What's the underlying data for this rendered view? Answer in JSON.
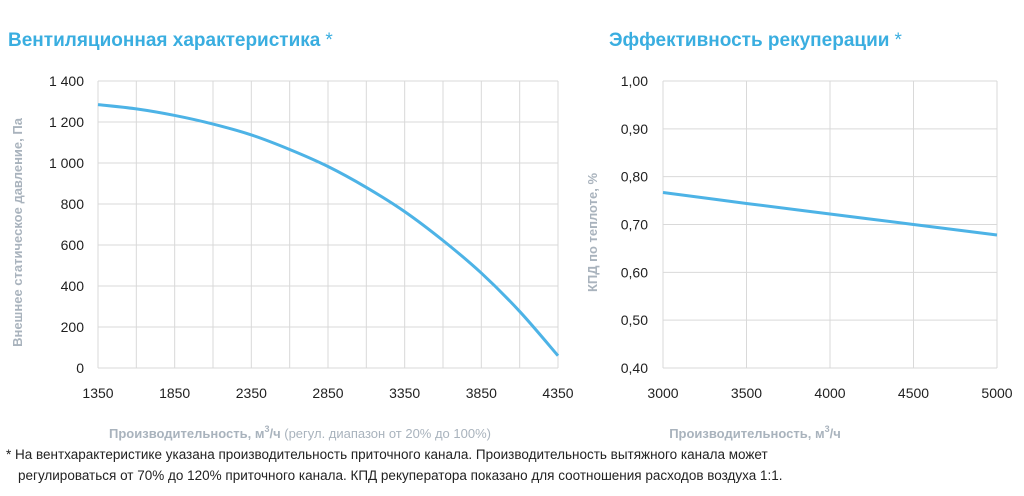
{
  "titles": {
    "left": "Вентиляционная характеристика",
    "right": "Эффективность рекуперации",
    "star": "*"
  },
  "footnote": {
    "line1": "* На вентхарактеристике указана производительность приточного канала. Производительность вытяжного канала может",
    "line2": "регулироваться от 70% до 120% приточного канала. КПД рекуператора показано для соотношения расходов воздуха 1:1."
  },
  "colors": {
    "accent": "#3aaee0",
    "curve": "#4db3e6",
    "grid": "#d9d9d9"
  },
  "chart_data": [
    {
      "type": "line",
      "title": "Вентиляционная характеристика",
      "xlabel": "Производительность, м³/ч (регул. диапазон от 20% до 100%)",
      "xlabel_main": "Производительность,",
      "xlabel_unit_pre": "м",
      "xlabel_unit_sup": "3",
      "xlabel_unit_post": "/ч",
      "xlabel_note": "(регул. диапазон от 20% до 100%)",
      "ylabel": "Внешнее статическое давление, Па",
      "xlim": [
        1350,
        4350
      ],
      "ylim": [
        0,
        1400
      ],
      "x_ticks": [
        1350,
        1850,
        2350,
        2850,
        3350,
        3850,
        4350
      ],
      "x_tick_labels": [
        "1350",
        "1850",
        "2350",
        "2850",
        "3350",
        "3850",
        "4350"
      ],
      "y_ticks": [
        0,
        200,
        400,
        600,
        800,
        1000,
        1200,
        1400
      ],
      "y_tick_labels": [
        "0",
        "200",
        "400",
        "600",
        "800",
        "1 000",
        "1 200",
        "1 400"
      ],
      "x_gridlines": [
        1350,
        1600,
        1850,
        2100,
        2350,
        2600,
        2850,
        3100,
        3350,
        3600,
        3850,
        4100,
        4350
      ],
      "grid": true,
      "series": [
        {
          "x": [
            1350,
            1600,
            1850,
            2100,
            2350,
            2600,
            2850,
            3100,
            3350,
            3600,
            3850,
            4100,
            4350
          ],
          "y": [
            1285,
            1264,
            1232,
            1190,
            1137,
            1066,
            983,
            881,
            763,
            622,
            463,
            276,
            60
          ]
        }
      ]
    },
    {
      "type": "line",
      "title": "Эффективность рекуперации",
      "xlabel": "Производительность, м³/ч",
      "xlabel_main": "Производительность,",
      "xlabel_unit_pre": "м",
      "xlabel_unit_sup": "3",
      "xlabel_unit_post": "/ч",
      "ylabel": "КПД по теплоте, %",
      "xlim": [
        3000,
        5000
      ],
      "ylim": [
        0.4,
        1.0
      ],
      "x_ticks": [
        3000,
        3500,
        4000,
        4500,
        5000
      ],
      "x_tick_labels": [
        "3000",
        "3500",
        "4000",
        "4500",
        "5000"
      ],
      "y_ticks": [
        0.4,
        0.5,
        0.6,
        0.7,
        0.8,
        0.9,
        1.0
      ],
      "y_tick_labels": [
        "0,40",
        "0,50",
        "0,60",
        "0,70",
        "0,80",
        "0,90",
        "1,00"
      ],
      "x_gridlines": [
        3000,
        3500,
        4000,
        4500,
        5000
      ],
      "grid": true,
      "series": [
        {
          "x": [
            3000,
            3500,
            4000,
            4500,
            5000
          ],
          "y": [
            0.767,
            0.744,
            0.722,
            0.7,
            0.678
          ]
        }
      ]
    }
  ]
}
